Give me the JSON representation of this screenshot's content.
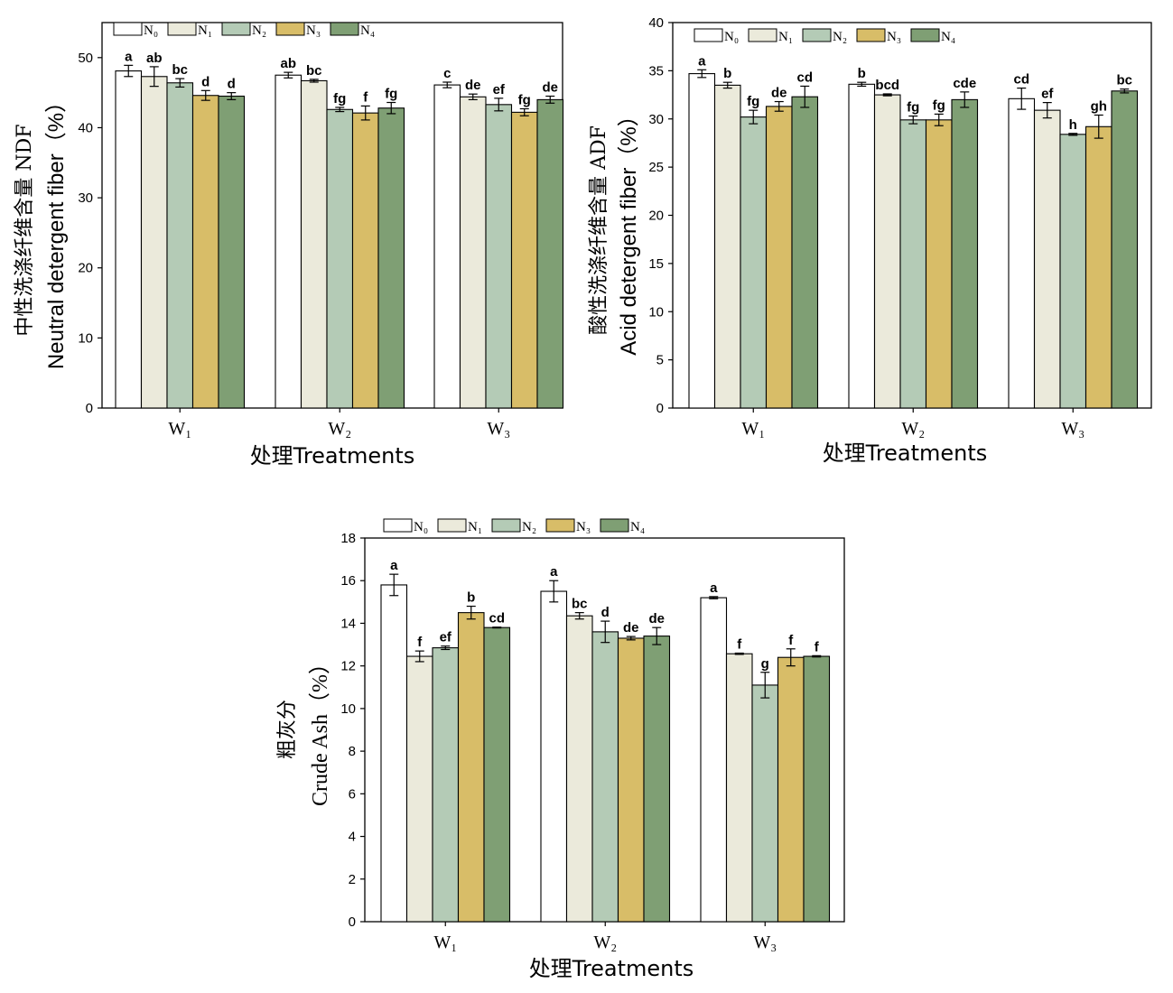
{
  "colors": {
    "N0": "#ffffff",
    "N1": "#ebeadb",
    "N2": "#b4cbb6",
    "N3": "#d8bd68",
    "N4": "#7f9f74"
  },
  "legend": [
    "N₀",
    "N₁",
    "N₂",
    "N₃",
    "N₄"
  ],
  "chart_data": [
    {
      "type": "bar",
      "ylabel_cn": "中性洗涤纤维含量 NDF",
      "ylabel_en": "Neutral detergent fiber（%）",
      "xlabel": "处理Treatments",
      "categories": [
        "W₁",
        "W₂",
        "W₃"
      ],
      "ylim": [
        0,
        55
      ],
      "yticks": [
        0,
        10,
        20,
        30,
        40,
        50
      ],
      "series": [
        {
          "name": "N₀",
          "values": [
            48.1,
            47.5,
            46.1
          ],
          "errors": [
            0.8,
            0.4,
            0.4
          ],
          "letters": [
            "a",
            "ab",
            "c"
          ]
        },
        {
          "name": "N₁",
          "values": [
            47.3,
            46.7,
            44.4
          ],
          "errors": [
            1.4,
            0.2,
            0.4
          ],
          "letters": [
            "ab",
            "bc",
            "de"
          ]
        },
        {
          "name": "N₂",
          "values": [
            46.4,
            42.6,
            43.3
          ],
          "errors": [
            0.6,
            0.3,
            0.9
          ],
          "letters": [
            "bc",
            "fg",
            "ef"
          ]
        },
        {
          "name": "N₃",
          "values": [
            44.6,
            42.1,
            42.2
          ],
          "errors": [
            0.7,
            1.0,
            0.5
          ],
          "letters": [
            "d",
            "f",
            "fg"
          ]
        },
        {
          "name": "N₄",
          "values": [
            44.5,
            42.8,
            44.0
          ],
          "errors": [
            0.5,
            0.8,
            0.5
          ],
          "letters": [
            "d",
            "fg",
            "de"
          ]
        }
      ]
    },
    {
      "type": "bar",
      "ylabel_cn": "酸性洗涤纤维含量 ADF",
      "ylabel_en": "Acid detergent fiber（%）",
      "xlabel": "处理Treatments",
      "categories": [
        "W₁",
        "W₂",
        "W₃"
      ],
      "ylim": [
        0,
        40
      ],
      "yticks": [
        0,
        5,
        10,
        15,
        20,
        25,
        30,
        35,
        40
      ],
      "series": [
        {
          "name": "N₀",
          "values": [
            34.7,
            33.6,
            32.1
          ],
          "errors": [
            0.4,
            0.2,
            1.1
          ],
          "letters": [
            "a",
            "b",
            "cd"
          ]
        },
        {
          "name": "N₁",
          "values": [
            33.5,
            32.5,
            30.9
          ],
          "errors": [
            0.3,
            0.1,
            0.8
          ],
          "letters": [
            "b",
            "bcd",
            "ef"
          ]
        },
        {
          "name": "N₂",
          "values": [
            30.2,
            29.9,
            28.4
          ],
          "errors": [
            0.7,
            0.4,
            0.1
          ],
          "letters": [
            "fg",
            "fg",
            "h"
          ]
        },
        {
          "name": "N₃",
          "values": [
            31.3,
            29.9,
            29.2
          ],
          "errors": [
            0.5,
            0.6,
            1.2
          ],
          "letters": [
            "de",
            "fg",
            "gh"
          ]
        },
        {
          "name": "N₄",
          "values": [
            32.3,
            32.0,
            32.9
          ],
          "errors": [
            1.1,
            0.8,
            0.2
          ],
          "letters": [
            "cd",
            "cde",
            "bc"
          ]
        }
      ]
    },
    {
      "type": "bar",
      "ylabel_cn": "粗灰分",
      "ylabel_en": "Crude Ash（%）",
      "xlabel": "处理Treatments",
      "categories": [
        "W₁",
        "W₂",
        "W₃"
      ],
      "ylim": [
        0,
        18
      ],
      "yticks": [
        0,
        2,
        4,
        6,
        8,
        10,
        12,
        14,
        16,
        18
      ],
      "series": [
        {
          "name": "N₀",
          "values": [
            15.8,
            15.5,
            15.2
          ],
          "errors": [
            0.5,
            0.5,
            0.05
          ],
          "letters": [
            "a",
            "a",
            "a"
          ]
        },
        {
          "name": "N₁",
          "values": [
            12.45,
            14.35,
            12.57
          ],
          "errors": [
            0.25,
            0.15,
            0.03
          ],
          "letters": [
            "f",
            "bc",
            "f"
          ]
        },
        {
          "name": "N₂",
          "values": [
            12.85,
            13.6,
            11.1
          ],
          "errors": [
            0.08,
            0.5,
            0.6
          ],
          "letters": [
            "ef",
            "d",
            "g"
          ]
        },
        {
          "name": "N₃",
          "values": [
            14.5,
            13.3,
            12.4
          ],
          "errors": [
            0.3,
            0.08,
            0.4
          ],
          "letters": [
            "b",
            "de",
            "f"
          ]
        },
        {
          "name": "N₄",
          "values": [
            13.8,
            13.4,
            12.45
          ],
          "errors": [
            0.02,
            0.4,
            0.03
          ],
          "letters": [
            "cd",
            "de",
            "f"
          ]
        }
      ]
    }
  ]
}
